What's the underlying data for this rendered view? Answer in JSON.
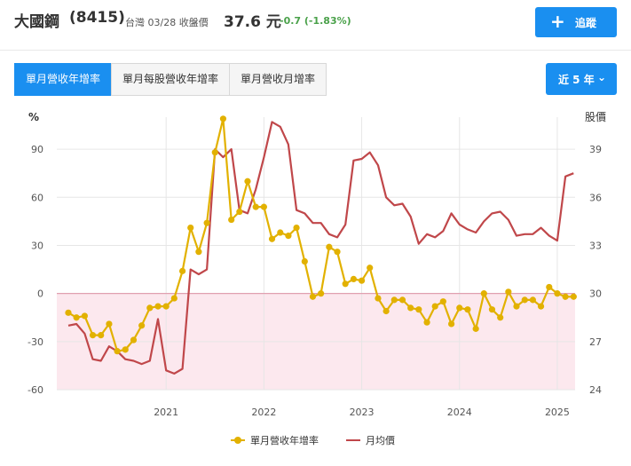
{
  "header": {
    "stock_name": "大國鋼",
    "stock_code": "(8415)",
    "quote_label": "台灣 03/28 收盤價",
    "price": "37.6 元",
    "change": "-0.7 (-1.83%)",
    "track_icon": "plus-icon",
    "track_label": "追蹤"
  },
  "tabs": [
    {
      "label": "單月營收年增率",
      "active": true
    },
    {
      "label": "單月每股營收年增率",
      "active": false
    },
    {
      "label": "單月營收月增率",
      "active": false
    }
  ],
  "range": {
    "label": "近 5 年",
    "icon": "chevron-down-icon"
  },
  "chart_data": {
    "type": "line",
    "left_axis_label": "%",
    "right_axis_label": "股價",
    "y_left": {
      "min": -60,
      "max": 110,
      "ticks": [
        -60,
        -30,
        0,
        30,
        60,
        90
      ]
    },
    "y_right": {
      "min": 24,
      "max": 41,
      "ticks": [
        24,
        27,
        30,
        33,
        36,
        39
      ]
    },
    "x_range": [
      2020.0,
      2025.3
    ],
    "x_ticks": [
      {
        "x": 2021.0,
        "label": "2021"
      },
      {
        "x": 2022.0,
        "label": "2022"
      },
      {
        "x": 2023.0,
        "label": "2023"
      },
      {
        "x": 2024.0,
        "label": "2024"
      },
      {
        "x": 2025.0,
        "label": "2025"
      }
    ],
    "grid": true,
    "legend_position": "bottom",
    "colors": {
      "yoy": "#e2b100",
      "price": "#c0474a",
      "negative_fill": "#fce8ee",
      "zero_line": "#e0a0b0"
    },
    "series": [
      {
        "name": "單月營收年增率",
        "axis": "left",
        "x": [
          2020.0,
          2020.083,
          2020.167,
          2020.25,
          2020.333,
          2020.417,
          2020.5,
          2020.583,
          2020.667,
          2020.75,
          2020.833,
          2020.917,
          2021.0,
          2021.083,
          2021.167,
          2021.25,
          2021.333,
          2021.417,
          2021.5,
          2021.583,
          2021.667,
          2021.75,
          2021.833,
          2021.917,
          2022.0,
          2022.083,
          2022.167,
          2022.25,
          2022.333,
          2022.417,
          2022.5,
          2022.583,
          2022.667,
          2022.75,
          2022.833,
          2022.917,
          2023.0,
          2023.083,
          2023.167,
          2023.25,
          2023.333,
          2023.417,
          2023.5,
          2023.583,
          2023.667,
          2023.75,
          2023.833,
          2023.917,
          2024.0,
          2024.083,
          2024.167,
          2024.25,
          2024.333,
          2024.417,
          2024.5,
          2024.583,
          2024.667,
          2024.75,
          2024.833,
          2024.917,
          2025.0,
          2025.083,
          2025.167
        ],
        "values": [
          -12,
          -15,
          -14,
          -26,
          -26,
          -19,
          -36,
          -35,
          -29,
          -20,
          -9,
          -8,
          -8,
          -3,
          14,
          41,
          26,
          44,
          88,
          109,
          46,
          51,
          70,
          54,
          54,
          34,
          38,
          36,
          41,
          20,
          -2,
          0,
          29,
          26,
          6,
          9,
          8,
          16,
          -3,
          -11,
          -4,
          -4,
          -9,
          -10,
          -18,
          -8,
          -5,
          -19,
          -9,
          -10,
          -22,
          0,
          -10,
          -15,
          1,
          -8,
          -4,
          -4,
          -8,
          4,
          0,
          -2,
          -2
        ]
      },
      {
        "name": "月均價",
        "axis": "right",
        "x": [
          2020.0,
          2020.083,
          2020.167,
          2020.25,
          2020.333,
          2020.417,
          2020.5,
          2020.583,
          2020.667,
          2020.75,
          2020.833,
          2020.917,
          2021.0,
          2021.083,
          2021.167,
          2021.25,
          2021.333,
          2021.417,
          2021.5,
          2021.583,
          2021.667,
          2021.75,
          2021.833,
          2021.917,
          2022.0,
          2022.083,
          2022.167,
          2022.25,
          2022.333,
          2022.417,
          2022.5,
          2022.583,
          2022.667,
          2022.75,
          2022.833,
          2022.917,
          2023.0,
          2023.083,
          2023.167,
          2023.25,
          2023.333,
          2023.417,
          2023.5,
          2023.583,
          2023.667,
          2023.75,
          2023.833,
          2023.917,
          2024.0,
          2024.083,
          2024.167,
          2024.25,
          2024.333,
          2024.417,
          2024.5,
          2024.583,
          2024.667,
          2024.75,
          2024.833,
          2024.917,
          2025.0,
          2025.083,
          2025.167
        ],
        "values": [
          28.0,
          28.1,
          27.5,
          25.9,
          25.8,
          26.7,
          26.4,
          25.9,
          25.8,
          25.6,
          25.8,
          28.4,
          25.2,
          25.0,
          25.3,
          31.5,
          31.2,
          31.5,
          39.0,
          38.5,
          39.0,
          35.2,
          35.0,
          36.5,
          38.5,
          40.7,
          40.4,
          39.3,
          35.2,
          35.0,
          34.4,
          34.4,
          33.7,
          33.5,
          34.3,
          38.3,
          38.4,
          38.8,
          38.0,
          36.0,
          35.5,
          35.6,
          34.8,
          33.1,
          33.7,
          33.5,
          33.9,
          35.0,
          34.3,
          34.0,
          33.8,
          34.5,
          35.0,
          35.1,
          34.6,
          33.6,
          33.7,
          33.7,
          34.1,
          33.6,
          33.3,
          37.3,
          37.5
        ]
      }
    ]
  }
}
